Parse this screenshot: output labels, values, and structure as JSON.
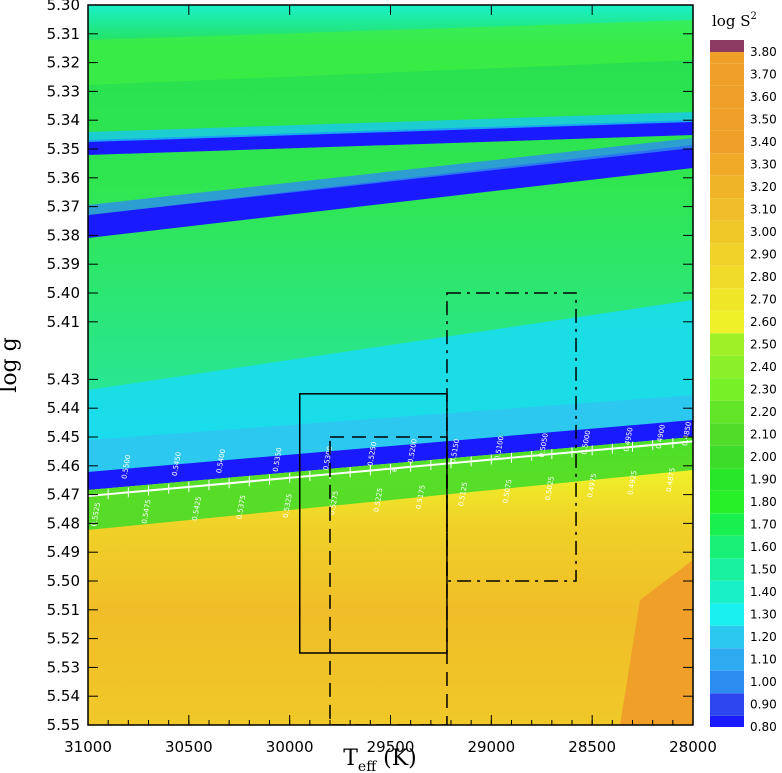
{
  "chart_data": {
    "type": "heatmap",
    "title": "",
    "xlabel": "T",
    "xlabel_sub": "eff",
    "xlabel_unit": " (K)",
    "ylabel": "log g",
    "colorbar_label": "log S",
    "colorbar_label_sup": "2",
    "xlim": [
      31000,
      28000
    ],
    "ylim": [
      5.55,
      5.3
    ],
    "x_ticks": [
      31000,
      30500,
      30000,
      29500,
      29000,
      28500,
      28000
    ],
    "x_tick_labels": [
      "31000",
      "30500",
      "30000",
      "29500",
      "29000",
      "28500",
      "28000"
    ],
    "y_ticks": [
      5.3,
      5.31,
      5.32,
      5.33,
      5.34,
      5.35,
      5.36,
      5.37,
      5.38,
      5.39,
      5.4,
      5.41,
      5.43,
      5.44,
      5.45,
      5.46,
      5.47,
      5.48,
      5.49,
      5.5,
      5.51,
      5.52,
      5.53,
      5.54,
      5.55
    ],
    "y_tick_labels": [
      "5.30",
      "5.31",
      "5.32",
      "5.33",
      "5.34",
      "5.35",
      "5.36",
      "5.37",
      "5.38",
      "5.39",
      "5.40",
      "5.41",
      "5.43",
      "5.44",
      "5.45",
      "5.46",
      "5.47",
      "5.48",
      "5.49",
      "5.50",
      "5.51",
      "5.52",
      "5.53",
      "5.54",
      "5.55"
    ],
    "colorbar_levels": [
      0.8,
      0.9,
      1.0,
      1.1,
      1.2,
      1.3,
      1.4,
      1.5,
      1.6,
      1.7,
      1.8,
      1.9,
      2.0,
      2.1,
      2.2,
      2.3,
      2.4,
      2.5,
      2.6,
      2.7,
      2.8,
      2.9,
      3.0,
      3.1,
      3.2,
      3.3,
      3.4,
      3.5,
      3.6,
      3.7,
      3.8
    ],
    "colorbar_tick_labels": [
      "0.80",
      "0.90",
      "1.00",
      "1.10",
      "1.20",
      "1.30",
      "1.40",
      "1.50",
      "1.60",
      "1.70",
      "1.80",
      "1.90",
      "2.00",
      "2.10",
      "2.20",
      "2.30",
      "2.40",
      "2.50",
      "2.60",
      "2.70",
      "2.80",
      "2.90",
      "3.00",
      "3.10",
      "3.20",
      "3.30",
      "3.40",
      "3.50",
      "3.60",
      "3.70",
      "3.80"
    ],
    "colorbar_colors": [
      "#1a1aff",
      "#2d46f0",
      "#2d8cf0",
      "#2daaf0",
      "#2dc8f0",
      "#19f0f0",
      "#19f0c8",
      "#19f0a0",
      "#19f078",
      "#19f050",
      "#28f028",
      "#28e628",
      "#3cdc28",
      "#50dc28",
      "#64e628",
      "#78f028",
      "#8cf028",
      "#a0f028",
      "#f0f028",
      "#f0e628",
      "#f0dc28",
      "#f0d228",
      "#f0c828",
      "#f0be28",
      "#f0b428",
      "#f0aa28",
      "#f0a028",
      "#f0a028",
      "#f0a028",
      "#f0a028",
      "#f0a028"
    ],
    "colorbar_top_color": "#8b3a62",
    "sequence_line": {
      "color": "#ffffff",
      "points": [
        [
          31000,
          5.4705
        ],
        [
          28000,
          5.4515
        ]
      ],
      "labels_upper": [
        {
          "x": 30800,
          "y": 5.4605,
          "text": "0.5500"
        },
        {
          "x": 30550,
          "y": 5.4595,
          "text": "0.5450"
        },
        {
          "x": 30330,
          "y": 5.4585,
          "text": "0.5400"
        },
        {
          "x": 30050,
          "y": 5.458,
          "text": "0.5350"
        },
        {
          "x": 29800,
          "y": 5.4575,
          "text": "0.5300"
        },
        {
          "x": 29580,
          "y": 5.456,
          "text": "0.5250"
        },
        {
          "x": 29380,
          "y": 5.455,
          "text": "0.5200"
        },
        {
          "x": 29170,
          "y": 5.455,
          "text": "0.5150"
        },
        {
          "x": 28950,
          "y": 5.454,
          "text": "0.5100"
        },
        {
          "x": 28730,
          "y": 5.453,
          "text": "0.5050"
        },
        {
          "x": 28520,
          "y": 5.452,
          "text": "0.5000"
        },
        {
          "x": 28310,
          "y": 5.451,
          "text": "0.4950"
        },
        {
          "x": 28150,
          "y": 5.45,
          "text": "0.4900"
        },
        {
          "x": 28020,
          "y": 5.449,
          "text": "0.4850"
        }
      ],
      "labels_lower": [
        {
          "x": 30950,
          "y": 5.477,
          "text": "0.5525"
        },
        {
          "x": 30700,
          "y": 5.476,
          "text": "0.5475"
        },
        {
          "x": 30450,
          "y": 5.475,
          "text": "0.5425"
        },
        {
          "x": 30230,
          "y": 5.4745,
          "text": "0.5375"
        },
        {
          "x": 30000,
          "y": 5.474,
          "text": "0.5325"
        },
        {
          "x": 29770,
          "y": 5.473,
          "text": "0.5275"
        },
        {
          "x": 29550,
          "y": 5.472,
          "text": "0.5225"
        },
        {
          "x": 29340,
          "y": 5.471,
          "text": "0.5175"
        },
        {
          "x": 29130,
          "y": 5.47,
          "text": "0.5125"
        },
        {
          "x": 28910,
          "y": 5.469,
          "text": "0.5075"
        },
        {
          "x": 28700,
          "y": 5.468,
          "text": "0.5025"
        },
        {
          "x": 28490,
          "y": 5.467,
          "text": "0.4975"
        },
        {
          "x": 28290,
          "y": 5.466,
          "text": "0.4925"
        },
        {
          "x": 28100,
          "y": 5.465,
          "text": "0.4875"
        }
      ]
    },
    "best_fit_marker": {
      "x": 29480,
      "y": 5.4615,
      "symbol": "⊕"
    },
    "boxes": [
      {
        "style": "solid",
        "x": [
          29950,
          29220
        ],
        "y": [
          5.435,
          5.525
        ]
      },
      {
        "style": "dashed",
        "x": [
          29800,
          29220
        ],
        "y": [
          5.45,
          5.55
        ]
      },
      {
        "style": "dashdot",
        "x": [
          29220,
          28580
        ],
        "y": [
          5.4,
          5.5
        ]
      }
    ]
  }
}
